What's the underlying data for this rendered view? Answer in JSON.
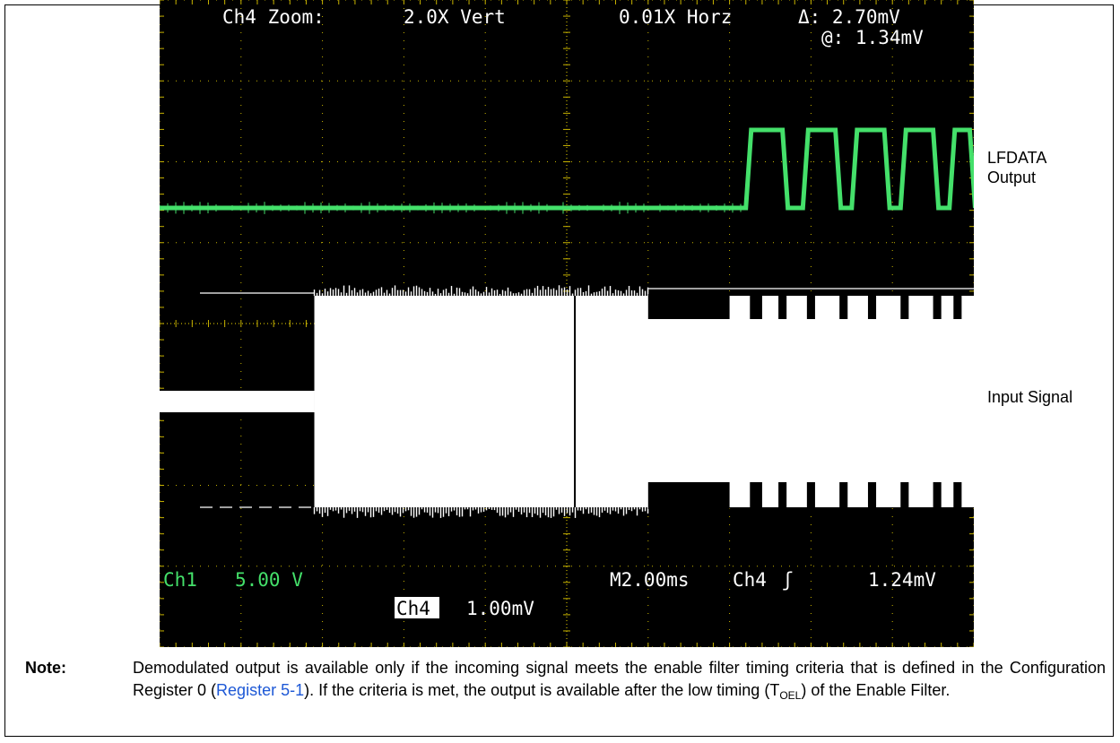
{
  "figure": {
    "header": {
      "zoom_label": "Ch4 Zoom:",
      "vert": "2.0X Vert",
      "horz": "0.01X Horz",
      "delta": "Δ: 2.70mV",
      "at": "@: 1.34mV"
    },
    "footer": {
      "ch1": "Ch1",
      "ch1_scale": "5.00 V",
      "timebase": "M2.00ms",
      "trigger_ch": "Ch4",
      "trigger_symbol": "ʃ",
      "trigger_level": "1.24mV",
      "ch4_badge": "Ch4",
      "ch4_scale": "1.00mV"
    },
    "side_labels": {
      "lfdata_line1": "LFDATA",
      "lfdata_line2": "Output",
      "input": "Input Signal"
    },
    "colors": {
      "screen": "#000000",
      "graticule": "#c8b400",
      "output_trace": "#44e06a",
      "input_trace": "#ffffff",
      "text": "#ffffff",
      "ch1_text": "#44e06a"
    }
  },
  "chart_data": {
    "type": "line",
    "x_unit": "ms",
    "x_divisions": 10,
    "y_divisions": 8,
    "time_per_div_ms": 2.0,
    "series": [
      {
        "name": "LFDATA Output",
        "low_until_ms": 14.4,
        "pulses": [
          {
            "rise_ms": 14.4,
            "fall_ms": 15.3
          },
          {
            "rise_ms": 15.8,
            "fall_ms": 16.6
          },
          {
            "rise_ms": 17.0,
            "fall_ms": 17.8
          },
          {
            "rise_ms": 18.2,
            "fall_ms": 19.0
          },
          {
            "rise_ms": 19.4,
            "fall_ms": 19.9
          }
        ]
      },
      {
        "name": "Input Signal",
        "burst_start_ms": 3.8,
        "carrier_gap_ms": 10.2,
        "modulation_start_ms": 12.0,
        "off_blocks_ms": [
          [
            12.0,
            14.0
          ],
          [
            14.5,
            14.8
          ],
          [
            15.2,
            15.4
          ],
          [
            15.9,
            16.1
          ],
          [
            16.7,
            16.9
          ],
          [
            17.4,
            17.6
          ],
          [
            18.2,
            18.4
          ],
          [
            19.0,
            19.2
          ],
          [
            19.5,
            19.7
          ]
        ]
      }
    ]
  },
  "note": {
    "label": "Note:",
    "text_before_link": "Demodulated output is available only if the incoming signal meets the enable filter timing criteria that is defined in the Configuration Register 0 (",
    "link": "Register 5-1",
    "text_after_link": "). If the criteria is met, the output is available after the low timing (T",
    "subscript": "OEL",
    "text_end": ") of the Enable Filter."
  }
}
